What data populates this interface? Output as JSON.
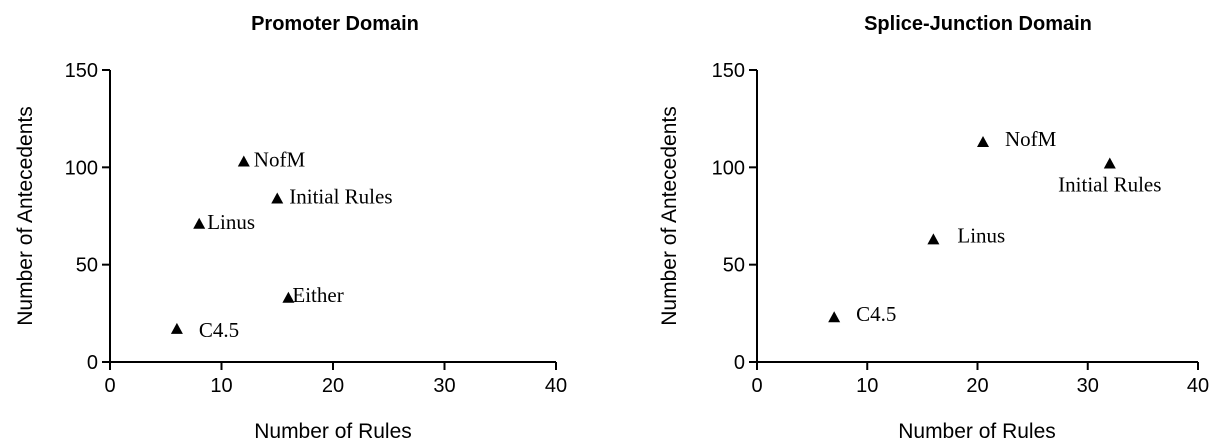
{
  "chart_data": [
    {
      "type": "scatter",
      "title": "Promoter Domain",
      "xlabel": "Number of Rules",
      "ylabel": "Number of Antecedents",
      "xlim": [
        0,
        40
      ],
      "ylim": [
        0,
        150
      ],
      "xticks": [
        0,
        10,
        20,
        30,
        40
      ],
      "yticks": [
        0,
        50,
        100,
        150
      ],
      "grid": false,
      "marker": "triangle",
      "points": [
        {
          "label": "NofM",
          "x": 12,
          "y": 103
        },
        {
          "label": "Initial Rules",
          "x": 15,
          "y": 84
        },
        {
          "label": "Linus",
          "x": 8,
          "y": 71
        },
        {
          "label": "Either",
          "x": 16,
          "y": 33
        },
        {
          "label": "C4.5",
          "x": 6,
          "y": 17
        }
      ]
    },
    {
      "type": "scatter",
      "title": "Splice-Junction Domain",
      "xlabel": "Number of Rules",
      "ylabel": "Number of Antecedents",
      "xlim": [
        0,
        40
      ],
      "ylim": [
        0,
        150
      ],
      "xticks": [
        0,
        10,
        20,
        30,
        40
      ],
      "yticks": [
        0,
        50,
        100,
        150
      ],
      "grid": false,
      "marker": "triangle",
      "points": [
        {
          "label": "NofM",
          "x": 20.5,
          "y": 113
        },
        {
          "label": "Initial Rules",
          "x": 32,
          "y": 102
        },
        {
          "label": "Linus",
          "x": 16,
          "y": 63
        },
        {
          "label": "C4.5",
          "x": 7,
          "y": 23
        }
      ]
    }
  ]
}
